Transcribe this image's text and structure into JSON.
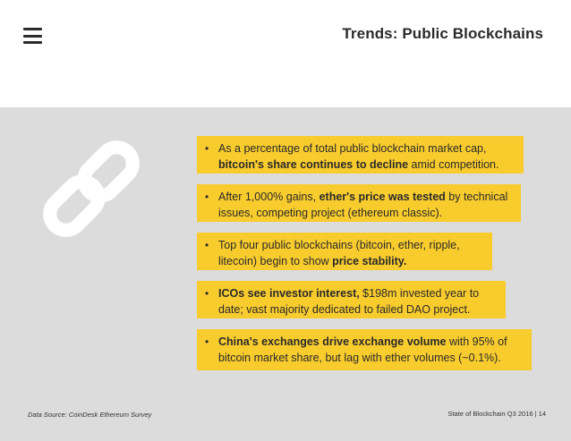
{
  "header": {
    "title": "Trends: Public Blockchains",
    "menu_icon": "hamburger-menu-icon"
  },
  "decoration": {
    "icon": "chain-link-icon",
    "color": "#ffffff"
  },
  "colors": {
    "highlight": "#f9cc2e",
    "panel_bg": "#dcdcdc"
  },
  "bullets": [
    {
      "pre": "As a percentage of total public blockchain market cap, ",
      "bold": "bitcoin's share continues to decline",
      "post": " amid competition."
    },
    {
      "pre": "After 1,000% gains, ",
      "bold": "ether's price was tested",
      "post": " by technical issues, competing project (ethereum classic)."
    },
    {
      "pre": "Top four public blockchains (bitcoin, ether, ripple, litecoin) begin to show ",
      "bold": "price stability.",
      "post": ""
    },
    {
      "pre": "",
      "bold": "ICOs see investor interest,",
      "post": " $198m invested year to date; vast majority dedicated to failed DAO project."
    },
    {
      "pre": "",
      "bold": "China's exchanges drive exchange volume",
      "post": " with 95% of bitcoin market share, but lag with ether volumes (~0.1%)."
    }
  ],
  "bullet_marker": "•",
  "footer": {
    "source": "Data Source: CoinDesk Ethereum Survey",
    "page_label": "State of Blockchain Q3 2016  |  14"
  }
}
